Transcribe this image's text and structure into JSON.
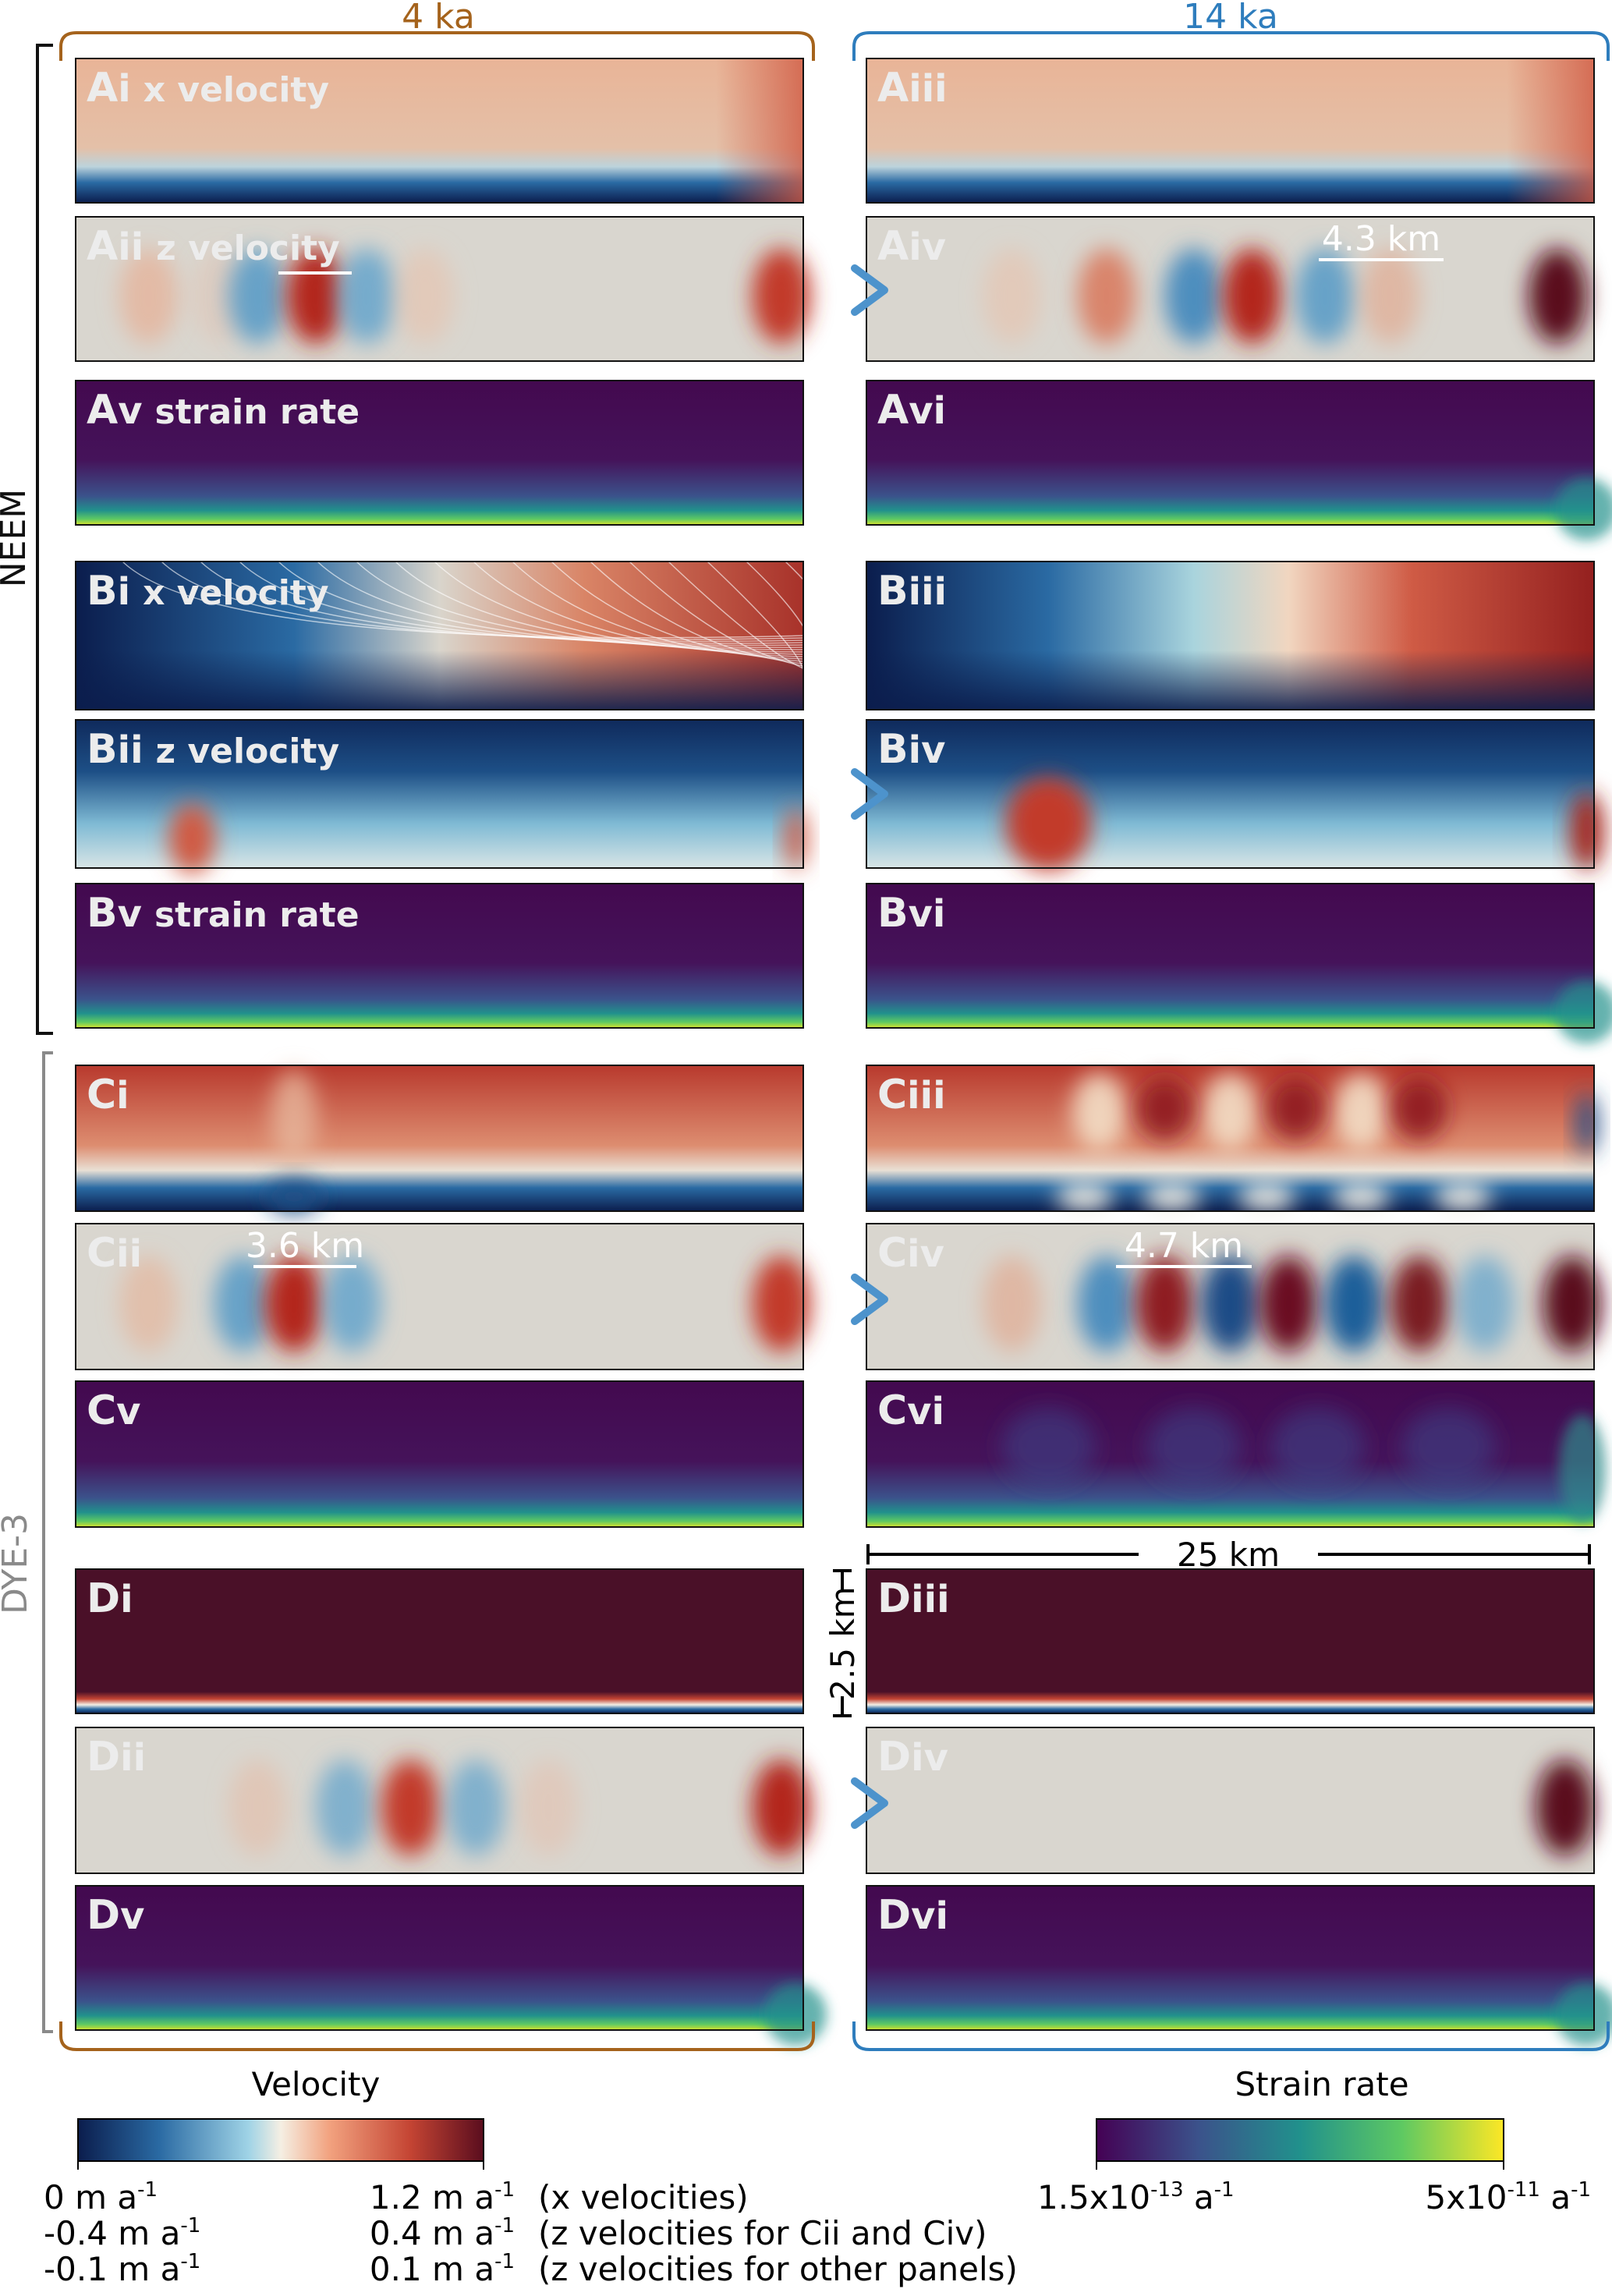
{
  "headers": {
    "left": "4 ka",
    "right": "14 ka"
  },
  "header_colors": {
    "left": "#a5631c",
    "right": "#2e7dbd"
  },
  "sites": {
    "top": "NEEM",
    "bottom": "DYE-3"
  },
  "panels": [
    {
      "id": "Ai",
      "letter": "A",
      "numeral": "i",
      "desc": "x velocity",
      "field": "xvel",
      "variant": "a",
      "scale": ""
    },
    {
      "id": "Aiii",
      "letter": "A",
      "numeral": "iii",
      "desc": "",
      "field": "xvel",
      "variant": "a14",
      "scale": ""
    },
    {
      "id": "Aii",
      "letter": "A",
      "numeral": "ii",
      "desc": "z velocity",
      "field": "zvel",
      "variant": "a4",
      "scale": ""
    },
    {
      "id": "Aiv",
      "letter": "A",
      "numeral": "iv",
      "desc": "",
      "field": "zvel",
      "variant": "a14",
      "scale": "4.3 km"
    },
    {
      "id": "Av",
      "letter": "A",
      "numeral": "v",
      "desc": "strain rate",
      "field": "strain",
      "variant": "flat",
      "scale": ""
    },
    {
      "id": "Avi",
      "letter": "A",
      "numeral": "vi",
      "desc": "",
      "field": "strain",
      "variant": "corner",
      "scale": ""
    },
    {
      "id": "Bi",
      "letter": "B",
      "numeral": "i",
      "desc": "x velocity",
      "field": "bxvel4",
      "variant": "b",
      "scale": ""
    },
    {
      "id": "Biii",
      "letter": "B",
      "numeral": "iii",
      "desc": "",
      "field": "bxvel14",
      "variant": "b",
      "scale": ""
    },
    {
      "id": "Bii",
      "letter": "B",
      "numeral": "ii",
      "desc": "z velocity",
      "field": "bzvel",
      "variant": "b4",
      "scale": ""
    },
    {
      "id": "Biv",
      "letter": "B",
      "numeral": "iv",
      "desc": "",
      "field": "bzvel",
      "variant": "b14",
      "scale": ""
    },
    {
      "id": "Bv",
      "letter": "B",
      "numeral": "v",
      "desc": "strain rate",
      "field": "strain",
      "variant": "flat",
      "scale": ""
    },
    {
      "id": "Bvi",
      "letter": "B",
      "numeral": "vi",
      "desc": "",
      "field": "strain",
      "variant": "corner",
      "scale": ""
    },
    {
      "id": "Ci",
      "letter": "C",
      "numeral": "i",
      "desc": "",
      "field": "cxvel",
      "variant": "c4",
      "scale": ""
    },
    {
      "id": "Ciii",
      "letter": "C",
      "numeral": "iii",
      "desc": "",
      "field": "cxvel",
      "variant": "c14",
      "scale": ""
    },
    {
      "id": "Cii",
      "letter": "C",
      "numeral": "ii",
      "desc": "",
      "field": "zvel",
      "variant": "c4",
      "scale": "3.6 km"
    },
    {
      "id": "Civ",
      "letter": "C",
      "numeral": "iv",
      "desc": "",
      "field": "zvel",
      "variant": "c14",
      "scale": "4.7 km"
    },
    {
      "id": "Cv",
      "letter": "C",
      "numeral": "v",
      "desc": "",
      "field": "strain",
      "variant": "cv",
      "scale": ""
    },
    {
      "id": "Cvi",
      "letter": "C",
      "numeral": "vi",
      "desc": "",
      "field": "strain",
      "variant": "cvi",
      "scale": ""
    },
    {
      "id": "Di",
      "letter": "D",
      "numeral": "i",
      "desc": "",
      "field": "dxvel",
      "variant": "flat",
      "scale": ""
    },
    {
      "id": "Diii",
      "letter": "D",
      "numeral": "iii",
      "desc": "",
      "field": "dxvel",
      "variant": "flat",
      "scale": ""
    },
    {
      "id": "Dii",
      "letter": "D",
      "numeral": "ii",
      "desc": "",
      "field": "zvel",
      "variant": "d4",
      "scale": ""
    },
    {
      "id": "Div",
      "letter": "D",
      "numeral": "iv",
      "desc": "",
      "field": "zvel",
      "variant": "d14",
      "scale": ""
    },
    {
      "id": "Dv",
      "letter": "D",
      "numeral": "v",
      "desc": "",
      "field": "strain",
      "variant": "dv",
      "scale": ""
    },
    {
      "id": "Dvi",
      "letter": "D",
      "numeral": "vi",
      "desc": "",
      "field": "strain",
      "variant": "dv",
      "scale": ""
    }
  ],
  "dimensions": {
    "width": "25 km",
    "height": "2.5 km"
  },
  "velocity_colorbar": {
    "title": "Velocity",
    "colors": [
      "#0b1d4d",
      "#2a6aa3",
      "#9fd3e6",
      "#f5efe3",
      "#f2a27f",
      "#c44433",
      "#5a0d1e"
    ],
    "rows": [
      {
        "min": "0 m a",
        "min_exp": "-1",
        "max": "1.2 m a",
        "max_exp": "-1",
        "note": "(x velocities)"
      },
      {
        "min": "-0.4 m a",
        "min_exp": "-1",
        "max": "0.4 m a",
        "max_exp": "-1",
        "note": "(z velocities for Cii and Civ)"
      },
      {
        "min": "-0.1 m a",
        "min_exp": "-1",
        "max": "0.1 m a",
        "max_exp": "-1",
        "note": "(z velocities for other panels)"
      }
    ]
  },
  "strain_colorbar": {
    "title": "Strain rate",
    "colors": [
      "#440154",
      "#3b528b",
      "#21918c",
      "#5ec962",
      "#fde725"
    ],
    "min": "1.5x10",
    "min_exp": "-13",
    "min_unit": " a",
    "min_unit_exp": "-1",
    "max": "5x10",
    "max_exp": "-11",
    "max_unit": " a",
    "max_unit_exp": "-1"
  }
}
